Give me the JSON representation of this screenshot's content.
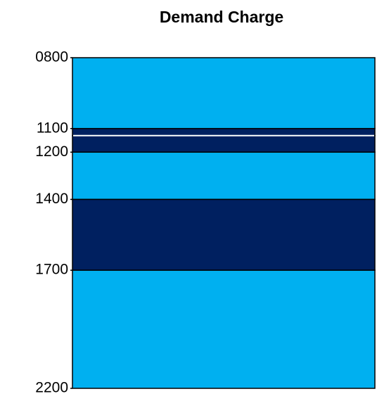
{
  "chart_data": {
    "type": "timeband",
    "title": "Demand Charge",
    "segments": [
      {
        "start": 800,
        "end": 1100,
        "color": "#00b0f0"
      },
      {
        "start": 1100,
        "end": 1130,
        "color": "#002060"
      },
      {
        "start": 1130,
        "end": 1200,
        "color": "#002060"
      },
      {
        "start": 1200,
        "end": 1400,
        "color": "#00b0f0"
      },
      {
        "start": 1400,
        "end": 1700,
        "color": "#002060"
      },
      {
        "start": 1700,
        "end": 2200,
        "color": "#00b0f0"
      }
    ],
    "ylim": [
      800,
      2200
    ],
    "yticks": [
      {
        "value": 800,
        "label": "0800"
      },
      1100,
      1200,
      1400,
      1700,
      2200
    ]
  }
}
